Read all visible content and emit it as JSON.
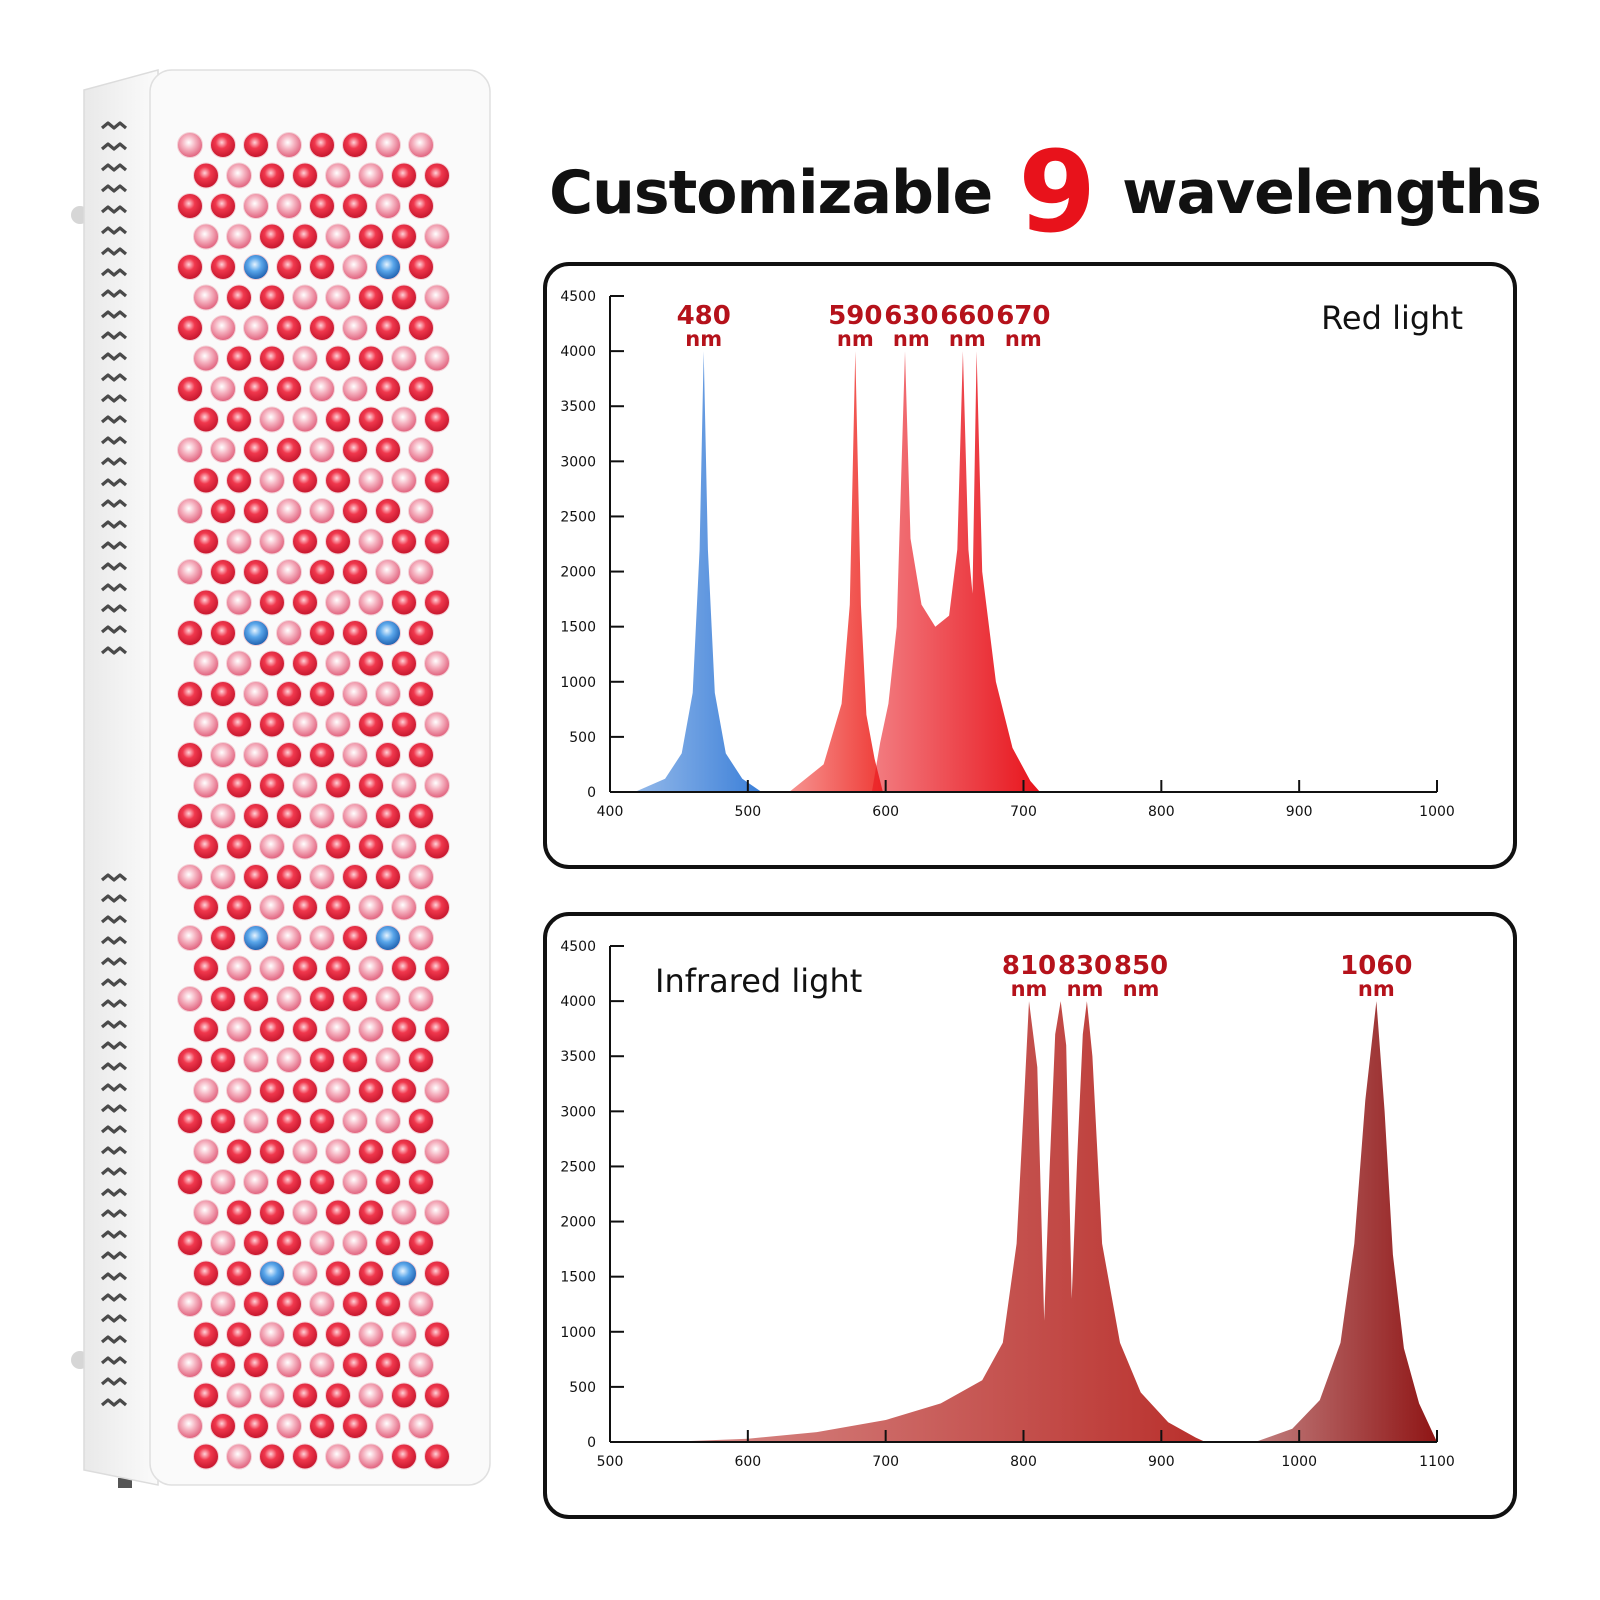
{
  "headline": {
    "pre": "Customizable",
    "number": "9",
    "post": "wavelengths"
  },
  "colors": {
    "accent": "#e8121b",
    "peak_label": "#b5121b",
    "blue_peak": "#3b7fd8",
    "red_peak": "#e8141c",
    "infrared_peak": "#b9302c",
    "deep_infrared_peak": "#8f1515",
    "led_red": "#e3263a",
    "led_pink": "#ef8fa3",
    "led_blue": "#3a8de0"
  },
  "device": {
    "icon": "led-light-therapy-panel",
    "led_types": [
      "red",
      "pink",
      "blue"
    ]
  },
  "chart_data": [
    {
      "type": "area",
      "title": "Red light",
      "xlim": [
        400,
        1000
      ],
      "ylim": [
        0,
        4500
      ],
      "xticks": [
        400,
        500,
        600,
        700,
        800,
        900,
        1000
      ],
      "yticks": [
        0,
        500,
        1000,
        1500,
        2000,
        2500,
        3000,
        3500,
        4000,
        4500
      ],
      "grid": false,
      "peaks": [
        {
          "label": "480",
          "unit": "nm",
          "x": 468,
          "y": 4000,
          "color": "#3b7fd8"
        },
        {
          "label": "590",
          "unit": "nm",
          "x": 578,
          "y": 4000,
          "color": "#e8141c"
        },
        {
          "label": "630",
          "unit": "nm",
          "x": 614,
          "y": 4000,
          "color": "#e8141c"
        },
        {
          "label": "660",
          "unit": "nm",
          "x": 656,
          "y": 4000,
          "color": "#e8141c"
        },
        {
          "label": "670",
          "unit": "nm",
          "x": 666,
          "y": 4000,
          "color": "#e8141c"
        }
      ],
      "series": [
        {
          "color": "#3b7fd8",
          "points": [
            [
              418,
              0
            ],
            [
              440,
              120
            ],
            [
              452,
              350
            ],
            [
              460,
              900
            ],
            [
              465,
              2200
            ],
            [
              468,
              4000
            ],
            [
              471,
              2200
            ],
            [
              476,
              900
            ],
            [
              484,
              350
            ],
            [
              496,
              120
            ],
            [
              510,
              0
            ]
          ]
        },
        {
          "color": "#ef3b36",
          "points": [
            [
              530,
              0
            ],
            [
              555,
              250
            ],
            [
              568,
              800
            ],
            [
              574,
              1700
            ],
            [
              578,
              4000
            ],
            [
              582,
              1700
            ],
            [
              586,
              700
            ],
            [
              592,
              300
            ],
            [
              598,
              0
            ]
          ]
        },
        {
          "color": "#e8141c",
          "points": [
            [
              590,
              0
            ],
            [
              596,
              450
            ],
            [
              602,
              800
            ],
            [
              608,
              1500
            ],
            [
              614,
              4000
            ],
            [
              618,
              2300
            ],
            [
              626,
              1700
            ],
            [
              636,
              1500
            ],
            [
              646,
              1600
            ],
            [
              652,
              2200
            ],
            [
              656,
              4000
            ],
            [
              660,
              2200
            ],
            [
              663,
              1800
            ],
            [
              666,
              4000
            ],
            [
              670,
              2000
            ],
            [
              680,
              1000
            ],
            [
              692,
              400
            ],
            [
              705,
              100
            ],
            [
              712,
              0
            ]
          ]
        }
      ]
    },
    {
      "type": "area",
      "title": "Infrared light",
      "xlim": [
        500,
        1100
      ],
      "ylim": [
        0,
        4500
      ],
      "xticks": [
        500,
        600,
        700,
        800,
        900,
        1000,
        1100
      ],
      "yticks": [
        0,
        500,
        1000,
        1500,
        2000,
        2500,
        3000,
        3500,
        4000,
        4500
      ],
      "grid": false,
      "peaks": [
        {
          "label": "810",
          "unit": "nm",
          "x": 804,
          "y": 4000,
          "color": "#b9302c"
        },
        {
          "label": "830",
          "unit": "nm",
          "x": 827,
          "y": 4000,
          "color": "#b9302c"
        },
        {
          "label": "850",
          "unit": "nm",
          "x": 846,
          "y": 4000,
          "color": "#b9302c"
        },
        {
          "label": "1060",
          "unit": "nm",
          "x": 1056,
          "y": 4000,
          "color": "#8f1515"
        }
      ],
      "series": [
        {
          "color": "#b9302c",
          "points": [
            [
              540,
              0
            ],
            [
              600,
              30
            ],
            [
              650,
              90
            ],
            [
              700,
              200
            ],
            [
              740,
              350
            ],
            [
              770,
              560
            ],
            [
              785,
              900
            ],
            [
              795,
              1800
            ],
            [
              800,
              3000
            ],
            [
              804,
              4000
            ],
            [
              810,
              3400
            ],
            [
              815,
              1100
            ],
            [
              819,
              2500
            ],
            [
              823,
              3700
            ],
            [
              827,
              4000
            ],
            [
              831,
              3600
            ],
            [
              835,
              1300
            ],
            [
              839,
              2600
            ],
            [
              843,
              3700
            ],
            [
              846,
              4000
            ],
            [
              850,
              3500
            ],
            [
              857,
              1800
            ],
            [
              870,
              900
            ],
            [
              885,
              450
            ],
            [
              905,
              180
            ],
            [
              925,
              40
            ],
            [
              932,
              0
            ]
          ]
        },
        {
          "color": "#8f1515",
          "points": [
            [
              968,
              0
            ],
            [
              995,
              120
            ],
            [
              1015,
              380
            ],
            [
              1030,
              900
            ],
            [
              1040,
              1800
            ],
            [
              1048,
              3100
            ],
            [
              1056,
              4000
            ],
            [
              1062,
              3000
            ],
            [
              1068,
              1700
            ],
            [
              1076,
              850
            ],
            [
              1087,
              350
            ],
            [
              1100,
              0
            ]
          ]
        }
      ]
    }
  ]
}
